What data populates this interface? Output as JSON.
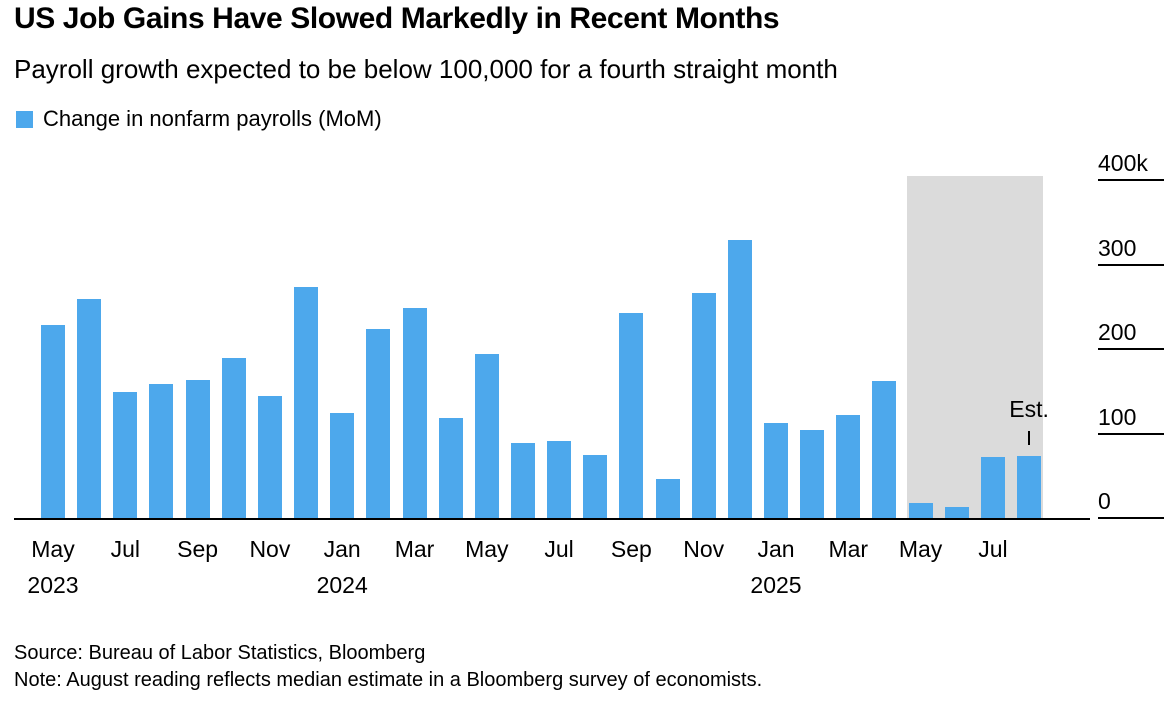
{
  "header": {
    "title": "US Job Gains Have Slowed Markedly in Recent Months",
    "subtitle": "Payroll growth expected to be below 100,000 for a fourth straight month"
  },
  "legend": {
    "label": "Change in nonfarm payrolls (MoM)",
    "swatch_color": "#4DA8EC"
  },
  "footer": {
    "source": "Source: Bureau of Labor Statistics, Bloomberg",
    "note": "Note: August reading reflects median estimate in a Bloomberg survey of economists."
  },
  "chart_data": {
    "type": "bar",
    "title": "US Job Gains Have Slowed Markedly in Recent Months",
    "subtitle": "Payroll growth expected to be below 100,000 for a fourth straight month",
    "legend": "Change in nonfarm payrolls (MoM)",
    "legend_position": "top-left",
    "unit": "thousands of jobs (k)",
    "ylabel": "",
    "xlabel": "",
    "ylim": [
      0,
      400
    ],
    "grid": "right-margin tick lines only",
    "bar_color": "#4DA8EC",
    "categories": [
      "May 2023",
      "Jun 2023",
      "Jul 2023",
      "Aug 2023",
      "Sep 2023",
      "Oct 2023",
      "Nov 2023",
      "Dec 2023",
      "Jan 2024",
      "Feb 2024",
      "Mar 2024",
      "Apr 2024",
      "May 2024",
      "Jun 2024",
      "Jul 2024",
      "Aug 2024",
      "Sep 2024",
      "Oct 2024",
      "Nov 2024",
      "Dec 2024",
      "Jan 2025",
      "Feb 2025",
      "Mar 2025",
      "Apr 2025",
      "May 2025",
      "Jun 2025",
      "Jul 2025",
      "Aug 2025"
    ],
    "values": [
      230,
      260,
      150,
      160,
      165,
      190,
      145,
      275,
      125,
      225,
      250,
      120,
      195,
      90,
      92,
      76,
      244,
      47,
      267,
      330,
      114,
      105,
      123,
      163,
      19,
      14,
      73,
      75
    ],
    "y_ticks": [
      {
        "value": 0,
        "label": "0"
      },
      {
        "value": 100,
        "label": "100"
      },
      {
        "value": 200,
        "label": "200"
      },
      {
        "value": 300,
        "label": "300"
      },
      {
        "value": 400,
        "label": "400k"
      }
    ],
    "x_ticks": [
      {
        "index": 0,
        "label": "May",
        "year": "2023"
      },
      {
        "index": 2,
        "label": "Jul"
      },
      {
        "index": 4,
        "label": "Sep"
      },
      {
        "index": 6,
        "label": "Nov"
      },
      {
        "index": 8,
        "label": "Jan",
        "year": "2024"
      },
      {
        "index": 10,
        "label": "Mar"
      },
      {
        "index": 12,
        "label": "May"
      },
      {
        "index": 14,
        "label": "Jul"
      },
      {
        "index": 16,
        "label": "Sep"
      },
      {
        "index": 18,
        "label": "Nov"
      },
      {
        "index": 20,
        "label": "Jan",
        "year": "2025"
      },
      {
        "index": 22,
        "label": "Mar"
      },
      {
        "index": 24,
        "label": "May"
      },
      {
        "index": 26,
        "label": "Jul"
      }
    ],
    "highlight_region": {
      "start_index": 24,
      "end_index": 27,
      "color": "#DBDBDB"
    },
    "estimate": {
      "index": 27,
      "label": "Est."
    }
  }
}
